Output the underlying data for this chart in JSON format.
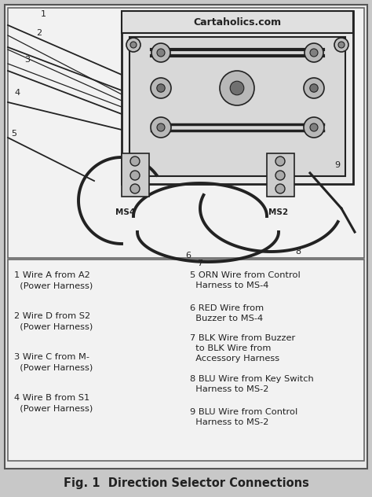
{
  "title": "Fig. 1  Direction Selector Connections",
  "watermark": "Cartaholics.com",
  "bg_color": "#c8c8c8",
  "inner_bg": "#e8e8e8",
  "white_bg": "#f2f2f2",
  "legend_left": [
    [
      "1 Wire A from A2",
      "  (Power Harness)"
    ],
    [
      "2 Wire D from S2",
      "  (Power Harness)"
    ],
    [
      "3 Wire C from M-",
      "  (Power Harness)"
    ],
    [
      "4 Wire B from S1",
      "  (Power Harness)"
    ]
  ],
  "legend_right": [
    [
      "5 ORN Wire from Control",
      "  Harness to MS-4"
    ],
    [
      "6 RED Wire from",
      "  Buzzer to MS-4"
    ],
    [
      "7 BLK Wire from Buzzer",
      "  to BLK Wire from",
      "  Accessory Harness"
    ],
    [
      "8 BLU Wire from Key Switch",
      "  Harness to MS-2"
    ],
    [
      "9 BLU Wire from Control",
      "  Harness to MS-2"
    ]
  ]
}
